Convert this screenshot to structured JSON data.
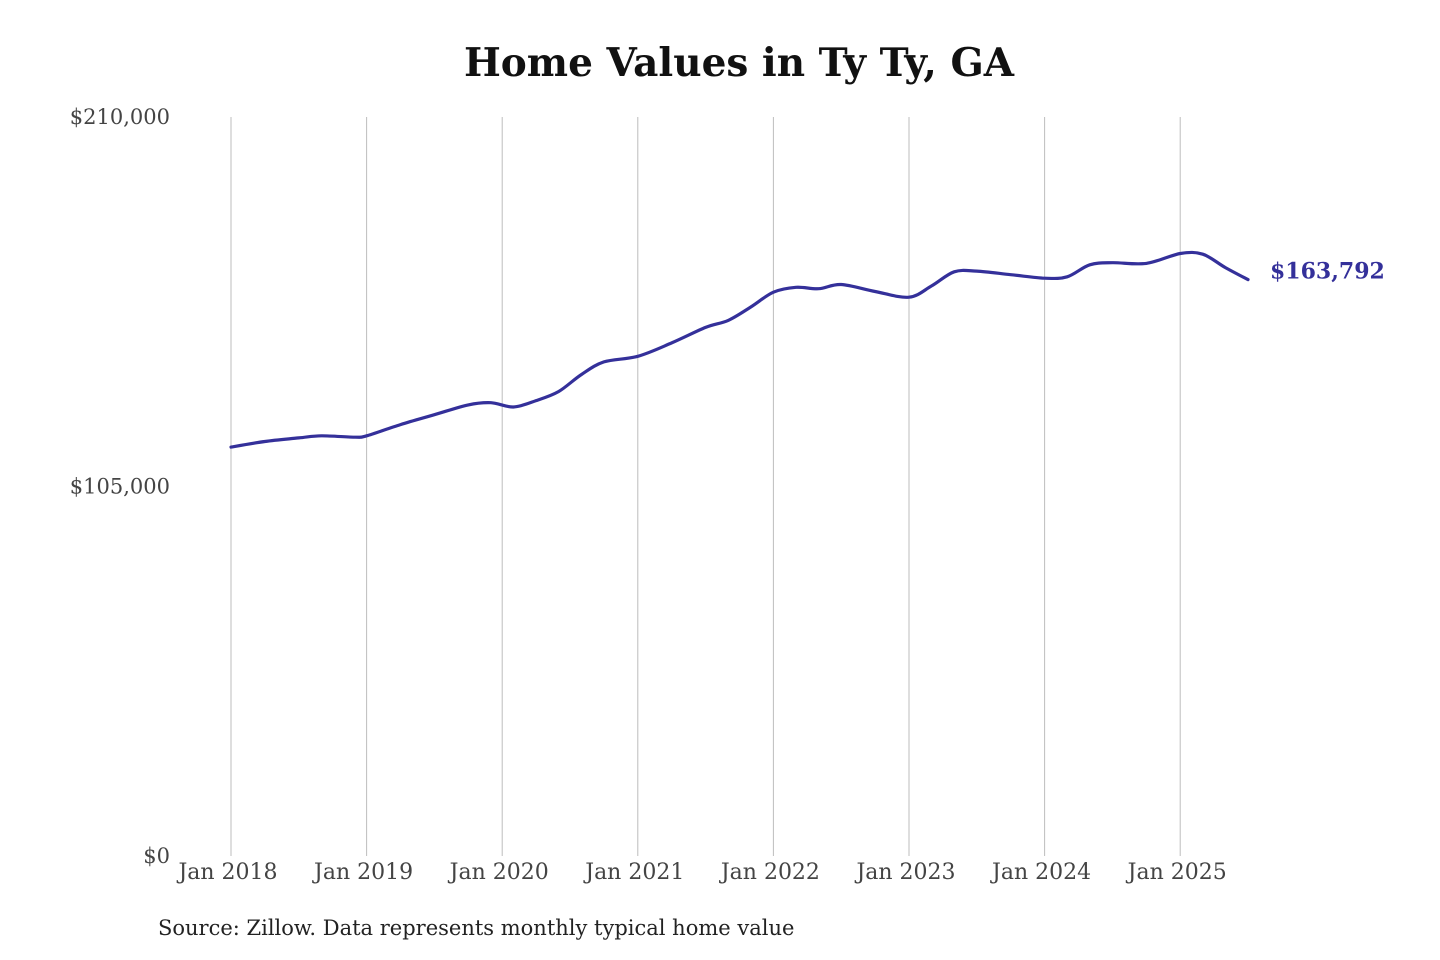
{
  "chart_data": {
    "type": "line",
    "title": "Home Values in Ty Ty, GA",
    "source": "Source: Zillow. Data represents monthly typical home value",
    "xlabel": "",
    "ylabel": "",
    "ylim": [
      0,
      210000
    ],
    "y_ticks": [
      {
        "value": 0,
        "label": "$0"
      },
      {
        "value": 105000,
        "label": "$105,000"
      },
      {
        "value": 210000,
        "label": "$210,000"
      }
    ],
    "x_ticks": [
      {
        "date": "2018-01",
        "label": "Jan 2018"
      },
      {
        "date": "2019-01",
        "label": "Jan 2019"
      },
      {
        "date": "2020-01",
        "label": "Jan 2020"
      },
      {
        "date": "2021-01",
        "label": "Jan 2021"
      },
      {
        "date": "2022-01",
        "label": "Jan 2022"
      },
      {
        "date": "2023-01",
        "label": "Jan 2023"
      },
      {
        "date": "2024-01",
        "label": "Jan 2024"
      },
      {
        "date": "2025-01",
        "label": "Jan 2025"
      }
    ],
    "vertical_grid": true,
    "line_color": "#34309a",
    "end_label": "$163,792",
    "series": [
      {
        "points": [
          {
            "x": "2018-01",
            "y": 116200
          },
          {
            "x": "2018-04",
            "y": 117800
          },
          {
            "x": "2018-07",
            "y": 118800
          },
          {
            "x": "2018-09",
            "y": 119400
          },
          {
            "x": "2018-12",
            "y": 119000
          },
          {
            "x": "2019-01",
            "y": 119400
          },
          {
            "x": "2019-04",
            "y": 122600
          },
          {
            "x": "2019-07",
            "y": 125400
          },
          {
            "x": "2019-10",
            "y": 128200
          },
          {
            "x": "2019-12",
            "y": 128800
          },
          {
            "x": "2020-02",
            "y": 127600
          },
          {
            "x": "2020-04",
            "y": 129400
          },
          {
            "x": "2020-06",
            "y": 132000
          },
          {
            "x": "2020-08",
            "y": 136800
          },
          {
            "x": "2020-10",
            "y": 140400
          },
          {
            "x": "2021-01",
            "y": 142000
          },
          {
            "x": "2021-04",
            "y": 145800
          },
          {
            "x": "2021-07",
            "y": 150200
          },
          {
            "x": "2021-09",
            "y": 152200
          },
          {
            "x": "2021-11",
            "y": 156000
          },
          {
            "x": "2022-01",
            "y": 160200
          },
          {
            "x": "2022-03",
            "y": 161600
          },
          {
            "x": "2022-05",
            "y": 161200
          },
          {
            "x": "2022-07",
            "y": 162400
          },
          {
            "x": "2022-10",
            "y": 160400
          },
          {
            "x": "2023-01",
            "y": 158800
          },
          {
            "x": "2023-03",
            "y": 162000
          },
          {
            "x": "2023-05",
            "y": 166000
          },
          {
            "x": "2023-07",
            "y": 166200
          },
          {
            "x": "2023-10",
            "y": 165200
          },
          {
            "x": "2024-01",
            "y": 164200
          },
          {
            "x": "2024-03",
            "y": 164600
          },
          {
            "x": "2024-05",
            "y": 168000
          },
          {
            "x": "2024-07",
            "y": 168600
          },
          {
            "x": "2024-10",
            "y": 168400
          },
          {
            "x": "2025-01",
            "y": 171200
          },
          {
            "x": "2025-03",
            "y": 171000
          },
          {
            "x": "2025-05",
            "y": 167200
          },
          {
            "x": "2025-07",
            "y": 163792
          }
        ]
      }
    ]
  }
}
